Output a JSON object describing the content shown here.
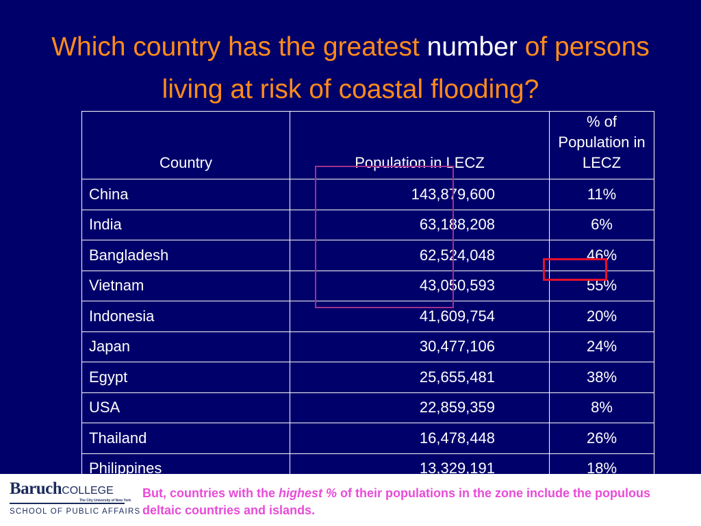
{
  "slide": {
    "title_part1": "Which country has the greatest ",
    "title_highlight": "number",
    "title_part2": " of persons living at risk of coastal flooding?"
  },
  "table": {
    "headers": [
      "Country",
      "Population in LECZ",
      "% of Population in LECZ"
    ],
    "rows": [
      {
        "country": "China",
        "population": "143,879,600",
        "percent": "11%"
      },
      {
        "country": "India",
        "population": "63,188,208",
        "percent": "6%"
      },
      {
        "country": "Bangladesh",
        "population": "62,524,048",
        "percent": "46%"
      },
      {
        "country": "Vietnam",
        "population": "43,050,593",
        "percent": "55%"
      },
      {
        "country": "Indonesia",
        "population": "41,609,754",
        "percent": "20%"
      },
      {
        "country": "Japan",
        "population": "30,477,106",
        "percent": "24%"
      },
      {
        "country": "Egypt",
        "population": "25,655,481",
        "percent": "38%"
      },
      {
        "country": "USA",
        "population": "22,859,359",
        "percent": "8%"
      },
      {
        "country": "Thailand",
        "population": "16,478,448",
        "percent": "26%"
      },
      {
        "country": "Philippines",
        "population": "13,329,191",
        "percent": "18%"
      }
    ]
  },
  "footer": {
    "logo": {
      "name": "Baruch",
      "college": "COLLEGE",
      "tagline": "The City University of New York",
      "school": "SCHOOL OF PUBLIC AFFAIRS"
    },
    "note_part1": "But, countries with the ",
    "note_emphasis": "highest %",
    "note_part2": " of their populations in the zone include the populous deltaic countries and islands."
  },
  "colors": {
    "background": "#00006a",
    "title": "#ff8c1a",
    "title_highlight": "#ffffff",
    "table_text": "#ffffff",
    "highlight_box_population": "#a0338c",
    "highlight_box_percent": "#e8102a",
    "footer_note": "#e84bd8",
    "logo": "#1b2a5c"
  }
}
